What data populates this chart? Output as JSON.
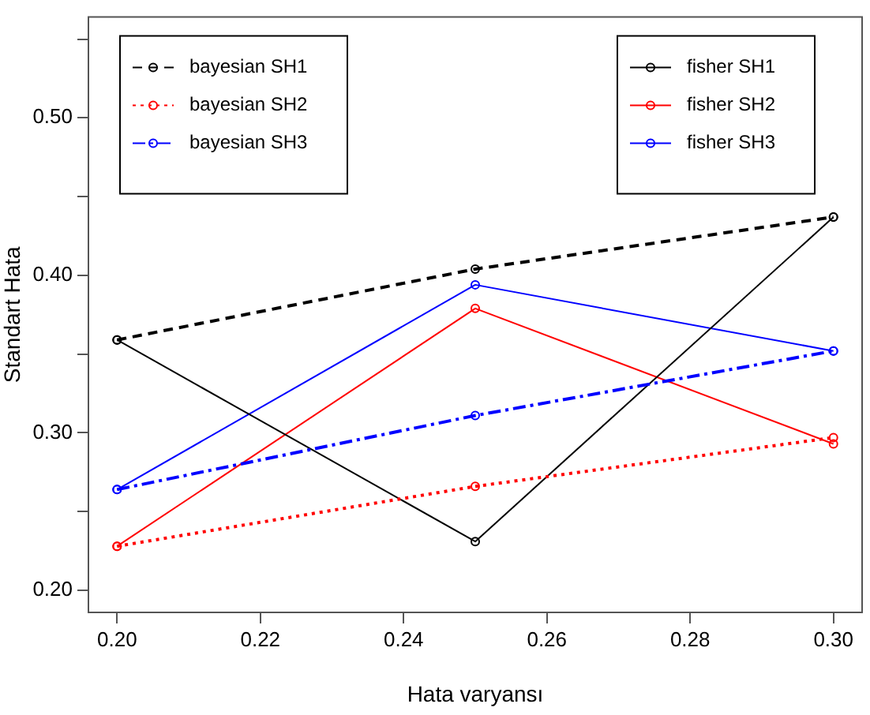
{
  "chart_data": {
    "type": "line",
    "xlabel": "Hata varyansı",
    "ylabel": "Standart Hata",
    "x": [
      0.2,
      0.25,
      0.3
    ],
    "xlim": [
      0.196,
      0.304
    ],
    "xticks": [
      {
        "value": 0.2,
        "label": "0.20"
      },
      0.22,
      0.24,
      0.26,
      0.28,
      {
        "value": 0.3,
        "label": "0.30"
      }
    ],
    "ylim": [
      0.186,
      0.564
    ],
    "yticks": [
      {
        "value": 0.2,
        "label": "0.20"
      },
      {
        "value": 0.25,
        "label": null
      },
      {
        "value": 0.3,
        "label": "0.30"
      },
      {
        "value": 0.35,
        "label": null
      },
      {
        "value": 0.4,
        "label": "0.40"
      },
      {
        "value": 0.45,
        "label": null
      },
      {
        "value": 0.5,
        "label": "0.50"
      },
      {
        "value": 0.55,
        "label": null
      }
    ],
    "grid": false,
    "legend": "top",
    "marker": "circle",
    "series": [
      {
        "name": "bayesian SH1",
        "color": "#000000",
        "line_style": "dashed",
        "values": [
          0.359,
          0.404,
          0.437
        ]
      },
      {
        "name": "bayesian SH2",
        "color": "#ff0000",
        "line_style": "dotted",
        "values": [
          0.228,
          0.266,
          0.297
        ]
      },
      {
        "name": "bayesian SH3",
        "color": "#0000ff",
        "line_style": "dashed",
        "values": [
          0.264,
          0.311,
          0.352
        ]
      },
      {
        "name": "fisher SH1",
        "color": "#000000",
        "line_style": "solid",
        "values": [
          0.359,
          0.231,
          0.437
        ]
      },
      {
        "name": "fisher SH2",
        "color": "#ff0000",
        "line_style": "solid",
        "values": [
          0.228,
          0.379,
          0.293
        ]
      },
      {
        "name": "fisher SH3",
        "color": "#0000ff",
        "line_style": "solid",
        "values": [
          0.264,
          0.394,
          0.352
        ]
      }
    ]
  }
}
